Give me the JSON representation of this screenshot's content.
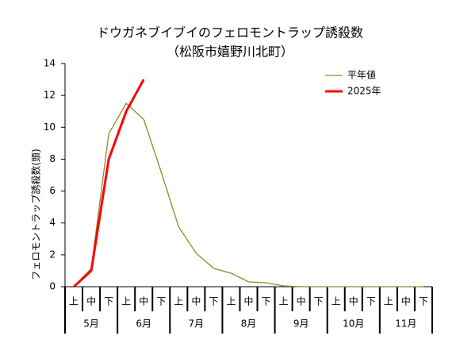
{
  "chart_data": {
    "type": "line",
    "title": [
      "ドウガネブイブイのフェロモントラップ誘殺数",
      "（松阪市嬉野川北町）"
    ],
    "y_label": "フェロモントラップ誘殺数(頭)",
    "categories": [
      "上",
      "中",
      "下",
      "上",
      "中",
      "下",
      "上",
      "中",
      "下",
      "上",
      "中",
      "下",
      "上",
      "中",
      "下",
      "上",
      "中",
      "下",
      "上",
      "中",
      "下"
    ],
    "month_labels": [
      "5月",
      "6月",
      "7月",
      "8月",
      "9月",
      "10月",
      "11月"
    ],
    "series": [
      {
        "name": "平年値",
        "color": "#8b8b2a",
        "width": 1.3,
        "values": [
          0,
          1.15,
          9.6,
          11.5,
          10.5,
          7.2,
          3.75,
          2.1,
          1.15,
          0.85,
          0.3,
          0.25,
          0.05,
          0,
          0,
          0,
          0,
          0,
          0,
          0,
          0
        ]
      },
      {
        "name": "2025年",
        "color": "#ff0000",
        "width": 3,
        "values": [
          0,
          1,
          8,
          11,
          13,
          null,
          null,
          null,
          null,
          null,
          null,
          null,
          null,
          null,
          null,
          null,
          null,
          null,
          null,
          null,
          null
        ]
      }
    ],
    "ylim": [
      0,
      14
    ],
    "yticks": [
      0,
      2,
      4,
      6,
      8,
      10,
      12,
      14
    ],
    "grid": false,
    "legend": "upper right"
  }
}
